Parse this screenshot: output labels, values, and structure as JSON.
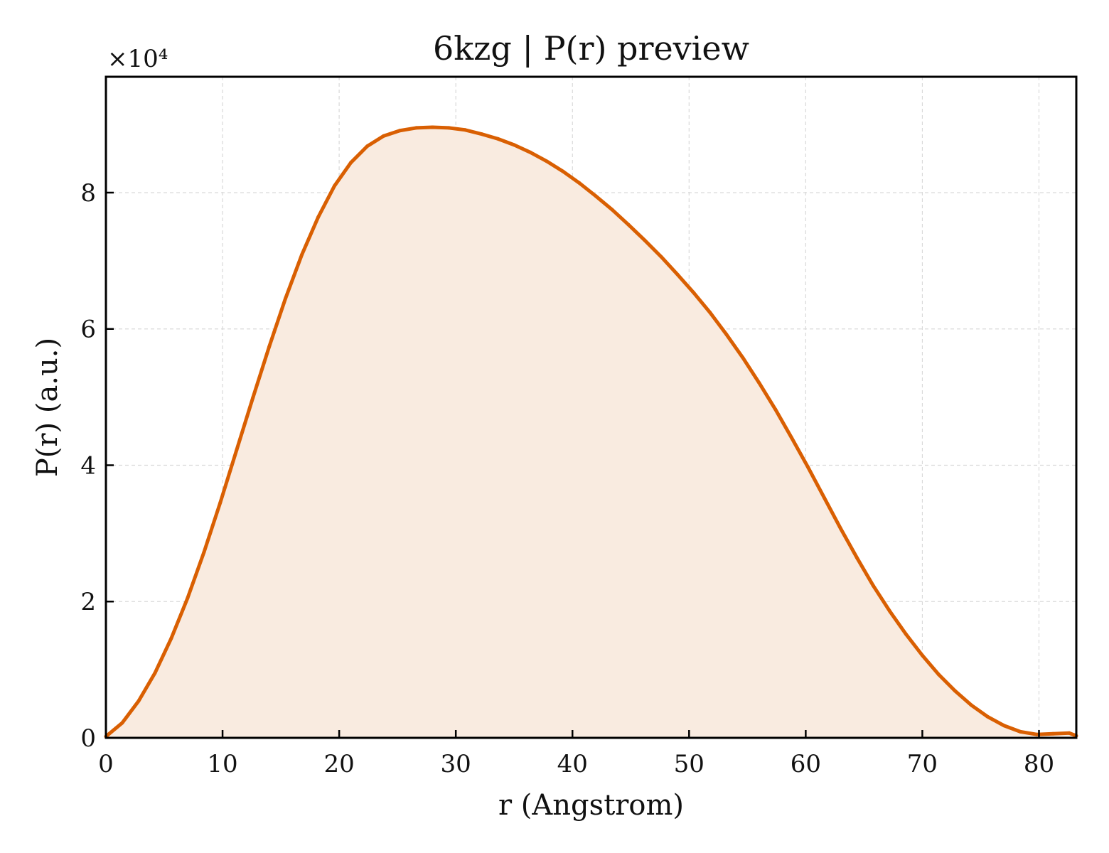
{
  "chart_data": {
    "type": "area",
    "title": "6kzg | P(r) preview",
    "xlabel": "r (Angstrom)",
    "ylabel": "P(r) (a.u.)",
    "y_multiplier": "×10⁴",
    "xlim": [
      0,
      83.2
    ],
    "ylim": [
      0,
      9.7
    ],
    "xticks": [
      0,
      10,
      20,
      30,
      40,
      50,
      60,
      70,
      80
    ],
    "yticks": [
      0,
      2,
      4,
      6,
      8
    ],
    "grid": true,
    "colors": {
      "line": "#d95f02",
      "fill": "#f9ebe0",
      "grid": "#d9d9d9",
      "frame": "#000000"
    },
    "series": [
      {
        "x": [
          0,
          1.4,
          2.8,
          4.2,
          5.6,
          7.0,
          8.4,
          9.8,
          11.2,
          12.6,
          14.0,
          15.4,
          16.8,
          18.2,
          19.6,
          21.0,
          22.4,
          23.8,
          25.2,
          26.6,
          28.0,
          29.4,
          30.8,
          32.2,
          33.6,
          35.0,
          36.4,
          37.8,
          39.2,
          40.6,
          42.0,
          43.4,
          44.8,
          46.2,
          47.6,
          49.0,
          50.4,
          51.8,
          53.2,
          54.6,
          56.0,
          57.4,
          58.8,
          60.2,
          61.6,
          63.0,
          64.4,
          65.8,
          67.2,
          68.6,
          70.0,
          71.4,
          72.8,
          74.2,
          75.6,
          77.0,
          78.4,
          79.8,
          81.2,
          82.6,
          83.2
        ],
        "values": [
          0.02,
          0.22,
          0.54,
          0.95,
          1.46,
          2.05,
          2.72,
          3.45,
          4.22,
          4.99,
          5.74,
          6.45,
          7.09,
          7.64,
          8.1,
          8.44,
          8.68,
          8.83,
          8.91,
          8.95,
          8.96,
          8.95,
          8.92,
          8.86,
          8.79,
          8.7,
          8.59,
          8.46,
          8.31,
          8.14,
          7.95,
          7.75,
          7.53,
          7.3,
          7.06,
          6.8,
          6.53,
          6.24,
          5.92,
          5.58,
          5.21,
          4.82,
          4.4,
          3.97,
          3.52,
          3.07,
          2.64,
          2.23,
          1.86,
          1.52,
          1.21,
          0.93,
          0.69,
          0.48,
          0.31,
          0.18,
          0.09,
          0.05,
          0.06,
          0.07,
          0.03
        ]
      }
    ]
  }
}
